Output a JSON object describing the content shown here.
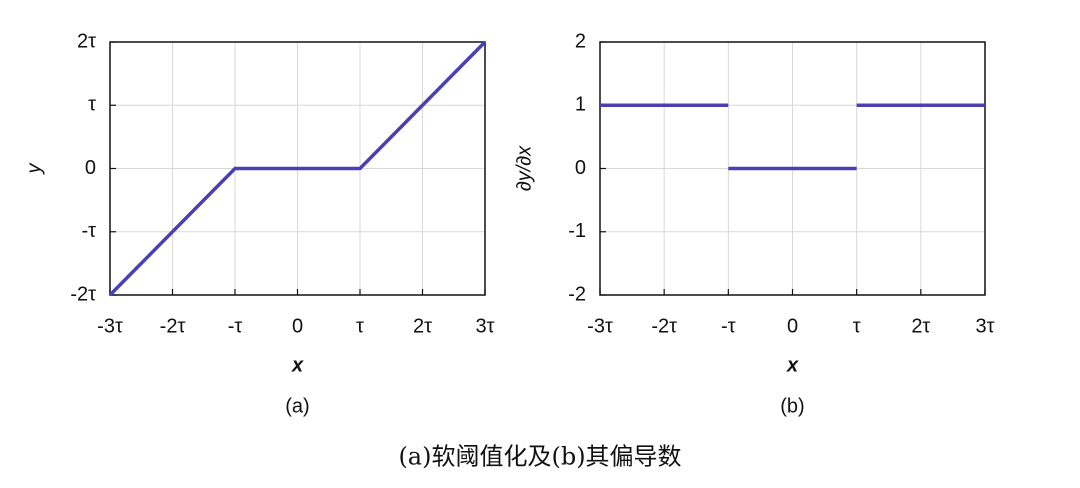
{
  "chart_data": [
    {
      "type": "line",
      "subplot_label": "(a)",
      "xlabel": "x",
      "ylabel": "y",
      "x": [
        -3,
        -1,
        1,
        3
      ],
      "series": [
        {
          "color": "#4a40b4",
          "values": [
            -2,
            0,
            0,
            2
          ]
        }
      ],
      "xlim": [
        -3,
        3
      ],
      "xticks": [
        {
          "value": -3,
          "label": "-3τ"
        },
        {
          "value": -2,
          "label": "-2τ"
        },
        {
          "value": -1,
          "label": "-τ"
        },
        0,
        {
          "value": 1,
          "label": "τ"
        },
        {
          "value": 2,
          "label": "2τ"
        },
        {
          "value": 3,
          "label": "3τ"
        }
      ],
      "ylim": [
        -2,
        2
      ],
      "yticks": [
        {
          "value": -2,
          "label": "-2τ"
        },
        {
          "value": -1,
          "label": "-τ"
        },
        0,
        {
          "value": 1,
          "label": "τ"
        },
        {
          "value": 2,
          "label": "2τ"
        }
      ],
      "grid": true
    },
    {
      "type": "line",
      "subplot_label": "(b)",
      "xlabel": "x",
      "ylabel": "∂y/∂x",
      "series": [
        {
          "color": "#4a40b4",
          "x": [
            -3,
            -1
          ],
          "values": [
            1,
            1
          ]
        },
        {
          "color": "#4a40b4",
          "x": [
            -1,
            1
          ],
          "values": [
            0,
            0
          ]
        },
        {
          "color": "#4a40b4",
          "x": [
            1,
            3
          ],
          "values": [
            1,
            1
          ]
        }
      ],
      "xlim": [
        -3,
        3
      ],
      "xticks": [
        {
          "value": -3,
          "label": "-3τ"
        },
        {
          "value": -2,
          "label": "-2τ"
        },
        {
          "value": -1,
          "label": "-τ"
        },
        0,
        {
          "value": 1,
          "label": "τ"
        },
        {
          "value": 2,
          "label": "2τ"
        },
        {
          "value": 3,
          "label": "3τ"
        }
      ],
      "ylim": [
        -2,
        2
      ],
      "yticks": [
        -2,
        -1,
        0,
        1,
        2
      ],
      "grid": true
    }
  ],
  "caption": "(a)软阈值化及(b)其偏导数"
}
